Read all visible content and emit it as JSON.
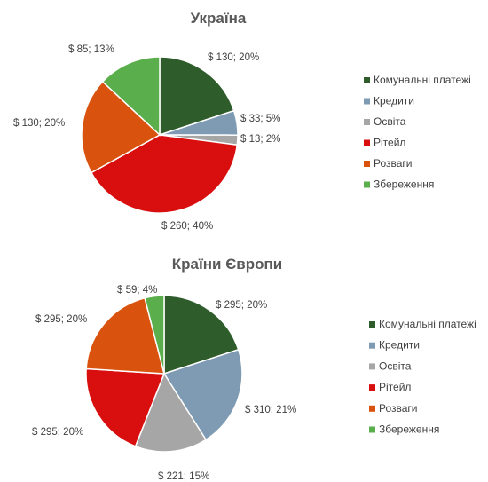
{
  "chart_data": [
    {
      "type": "pie",
      "title": "Україна",
      "categories": [
        "Комунальні платежі",
        "Кредити",
        "Освіта",
        "Рітейл",
        "Розваги",
        "Збереження"
      ],
      "values": [
        130,
        33,
        13,
        260,
        130,
        85
      ],
      "data_labels": [
        "$ 130; 20%",
        "$ 33; 5%",
        "$ 13; 2%",
        "$ 260; 40%",
        "$ 130; 20%",
        "$ 85; 13%"
      ],
      "colors": [
        "#2e5c2a",
        "#7f9bb3",
        "#a6a6a6",
        "#d90f0f",
        "#d9530f",
        "#5aaf4c"
      ],
      "legend_position": "right"
    },
    {
      "type": "pie",
      "title": "Країни Європи",
      "categories": [
        "Комунальні платежі",
        "Кредити",
        "Освіта",
        "Рітейл",
        "Розваги",
        "Збереження"
      ],
      "values": [
        295,
        310,
        221,
        295,
        295,
        59
      ],
      "data_labels": [
        "$ 295; 20%",
        "$ 310; 21%",
        "$ 221; 15%",
        "$ 295; 20%",
        "$ 295; 20%",
        "$ 59; 4%"
      ],
      "colors": [
        "#2e5c2a",
        "#7f9bb3",
        "#a6a6a6",
        "#d90f0f",
        "#d9530f",
        "#5aaf4c"
      ],
      "legend_position": "right"
    }
  ]
}
